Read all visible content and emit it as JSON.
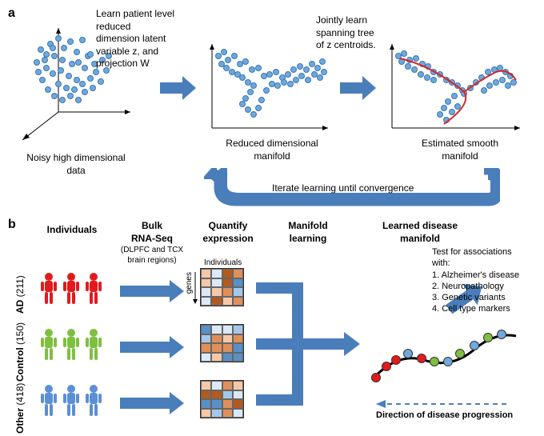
{
  "panel_a_label": "a",
  "panel_b_label": "b",
  "colors": {
    "dot_blue": "#6fa8dc",
    "dot_stroke": "#3b78b5",
    "arrow_blue": "#4a7ebb",
    "tree_red": "#d62728",
    "curve_purple": "#6a4c93",
    "ad_red": "#e31a1c",
    "control_green": "#7fbf3f",
    "other_blue": "#5b8fd6",
    "manifold_black": "#000000",
    "heat1": "#b35a1e",
    "heat2": "#e08f5a",
    "heat3": "#f5c8a8",
    "heat4": "#dbe9f6",
    "heat5": "#a6c8e8",
    "heat6": "#5a8fc7",
    "dash_blue": "#4a7ebb"
  },
  "a": {
    "annot1": "Learn patient level\nreduced\ndimension latent\nvariable z, and\nprojection W",
    "annot2": "Jointly learn\nspanning tree\nof z centroids.",
    "cap1": "Noisy high dimensional\ndata",
    "cap2": "Reduced dimensional\nmanifold",
    "cap3": "Estimated smooth\nmanifold",
    "iterate": "Iterate learning until convergence"
  },
  "b": {
    "col_individuals": "Individuals",
    "col_bulk": "Bulk\nRNA-Seq",
    "col_bulk_sub": "(DLPFC and TCX\nbrain regions)",
    "col_quantify": "Quantify\nexpression",
    "col_manifold": "Manifold\nlearning",
    "col_learned": "Learned disease\nmanifold",
    "row_ad": "AD (211)",
    "row_control": "Control (150)",
    "row_other": "Other (418)",
    "heat_x": "Individuals",
    "heat_y": "genes",
    "assoc_title": "Test for associations\nwith:",
    "assoc_1": "1. Alzheimer's disease",
    "assoc_2": "2. Neuropathology",
    "assoc_3": "3. Genetic variants",
    "assoc_4": "4. Cell type markers",
    "direction": "Direction of disease progression"
  }
}
